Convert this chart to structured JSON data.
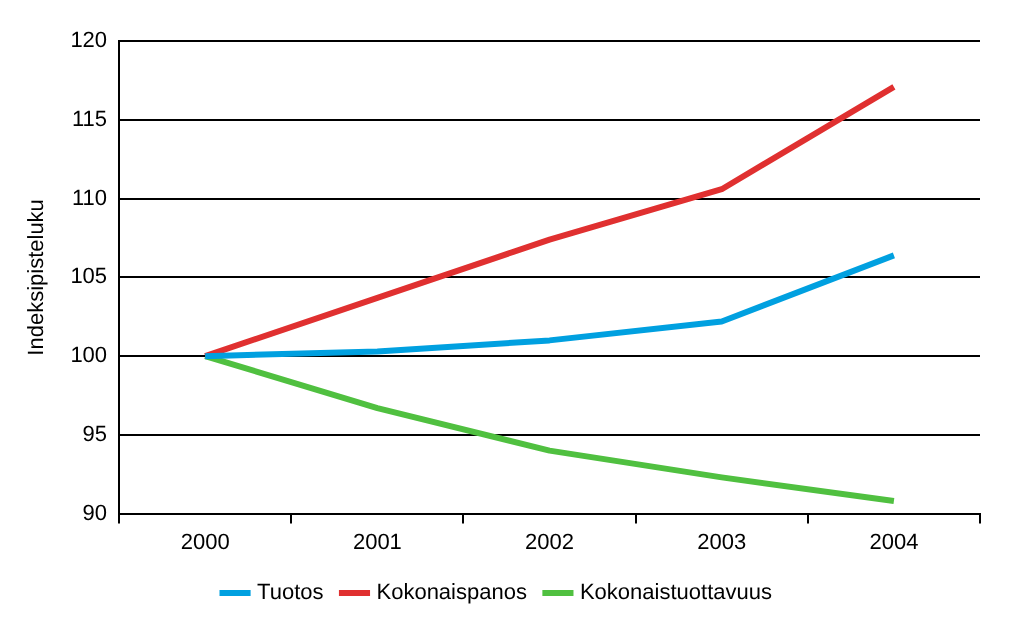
{
  "chart_data": {
    "type": "line",
    "ylabel": "Indeksipisteluku",
    "categories": [
      "2000",
      "2001",
      "2002",
      "2003",
      "2004"
    ],
    "series": [
      {
        "name": "Tuotos",
        "color": "#00a0e0",
        "values": [
          100,
          100.3,
          101,
          102.2,
          106.4
        ]
      },
      {
        "name": "Kokonaispanos",
        "color": "#e03030",
        "values": [
          100,
          103.7,
          107.4,
          110.6,
          117.1
        ]
      },
      {
        "name": "Kokonaistuottavuus",
        "color": "#50c040",
        "values": [
          100,
          96.7,
          94,
          92.3,
          90.8
        ]
      }
    ],
    "ylim": [
      90,
      120
    ],
    "yticks": [
      90,
      95,
      100,
      105,
      110,
      115,
      120
    ],
    "grid": "y",
    "legend": "bottom",
    "marker": "none",
    "line_style": "solid"
  }
}
